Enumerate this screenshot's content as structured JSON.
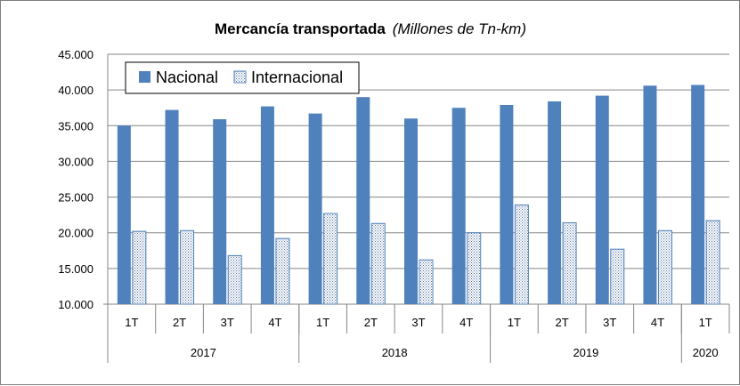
{
  "chart_data": {
    "type": "bar",
    "title": "Mercancía transportada",
    "subtitle": "(Millones de Tn-km)",
    "categories": [
      "1T",
      "2T",
      "3T",
      "4T",
      "1T",
      "2T",
      "3T",
      "4T",
      "1T",
      "2T",
      "3T",
      "4T",
      "1T"
    ],
    "groups": [
      {
        "label": "2017",
        "count": 4
      },
      {
        "label": "2018",
        "count": 4
      },
      {
        "label": "2019",
        "count": 4
      },
      {
        "label": "2020",
        "count": 1
      }
    ],
    "series": [
      {
        "name": "Nacional",
        "color": "#4f81bd",
        "fill": "solid",
        "values": [
          35000,
          37200,
          35900,
          37700,
          36700,
          39000,
          36000,
          37500,
          37900,
          38400,
          39200,
          40600,
          40700
        ]
      },
      {
        "name": "Internacional",
        "color": "#4f81bd",
        "fill": "dotted",
        "values": [
          20200,
          20300,
          16800,
          19200,
          22700,
          21300,
          16200,
          20000,
          23900,
          21400,
          17700,
          20300,
          21700
        ]
      }
    ],
    "ylim": [
      10000,
      45000
    ],
    "yticks": [
      "10.000",
      "15.000",
      "20.000",
      "25.000",
      "30.000",
      "35.000",
      "40.000",
      "45.000"
    ],
    "ytick_values": [
      10000,
      15000,
      20000,
      25000,
      30000,
      35000,
      40000,
      45000
    ],
    "xlabel": "",
    "ylabel": "",
    "grid": true,
    "legend_position": "top-left"
  }
}
